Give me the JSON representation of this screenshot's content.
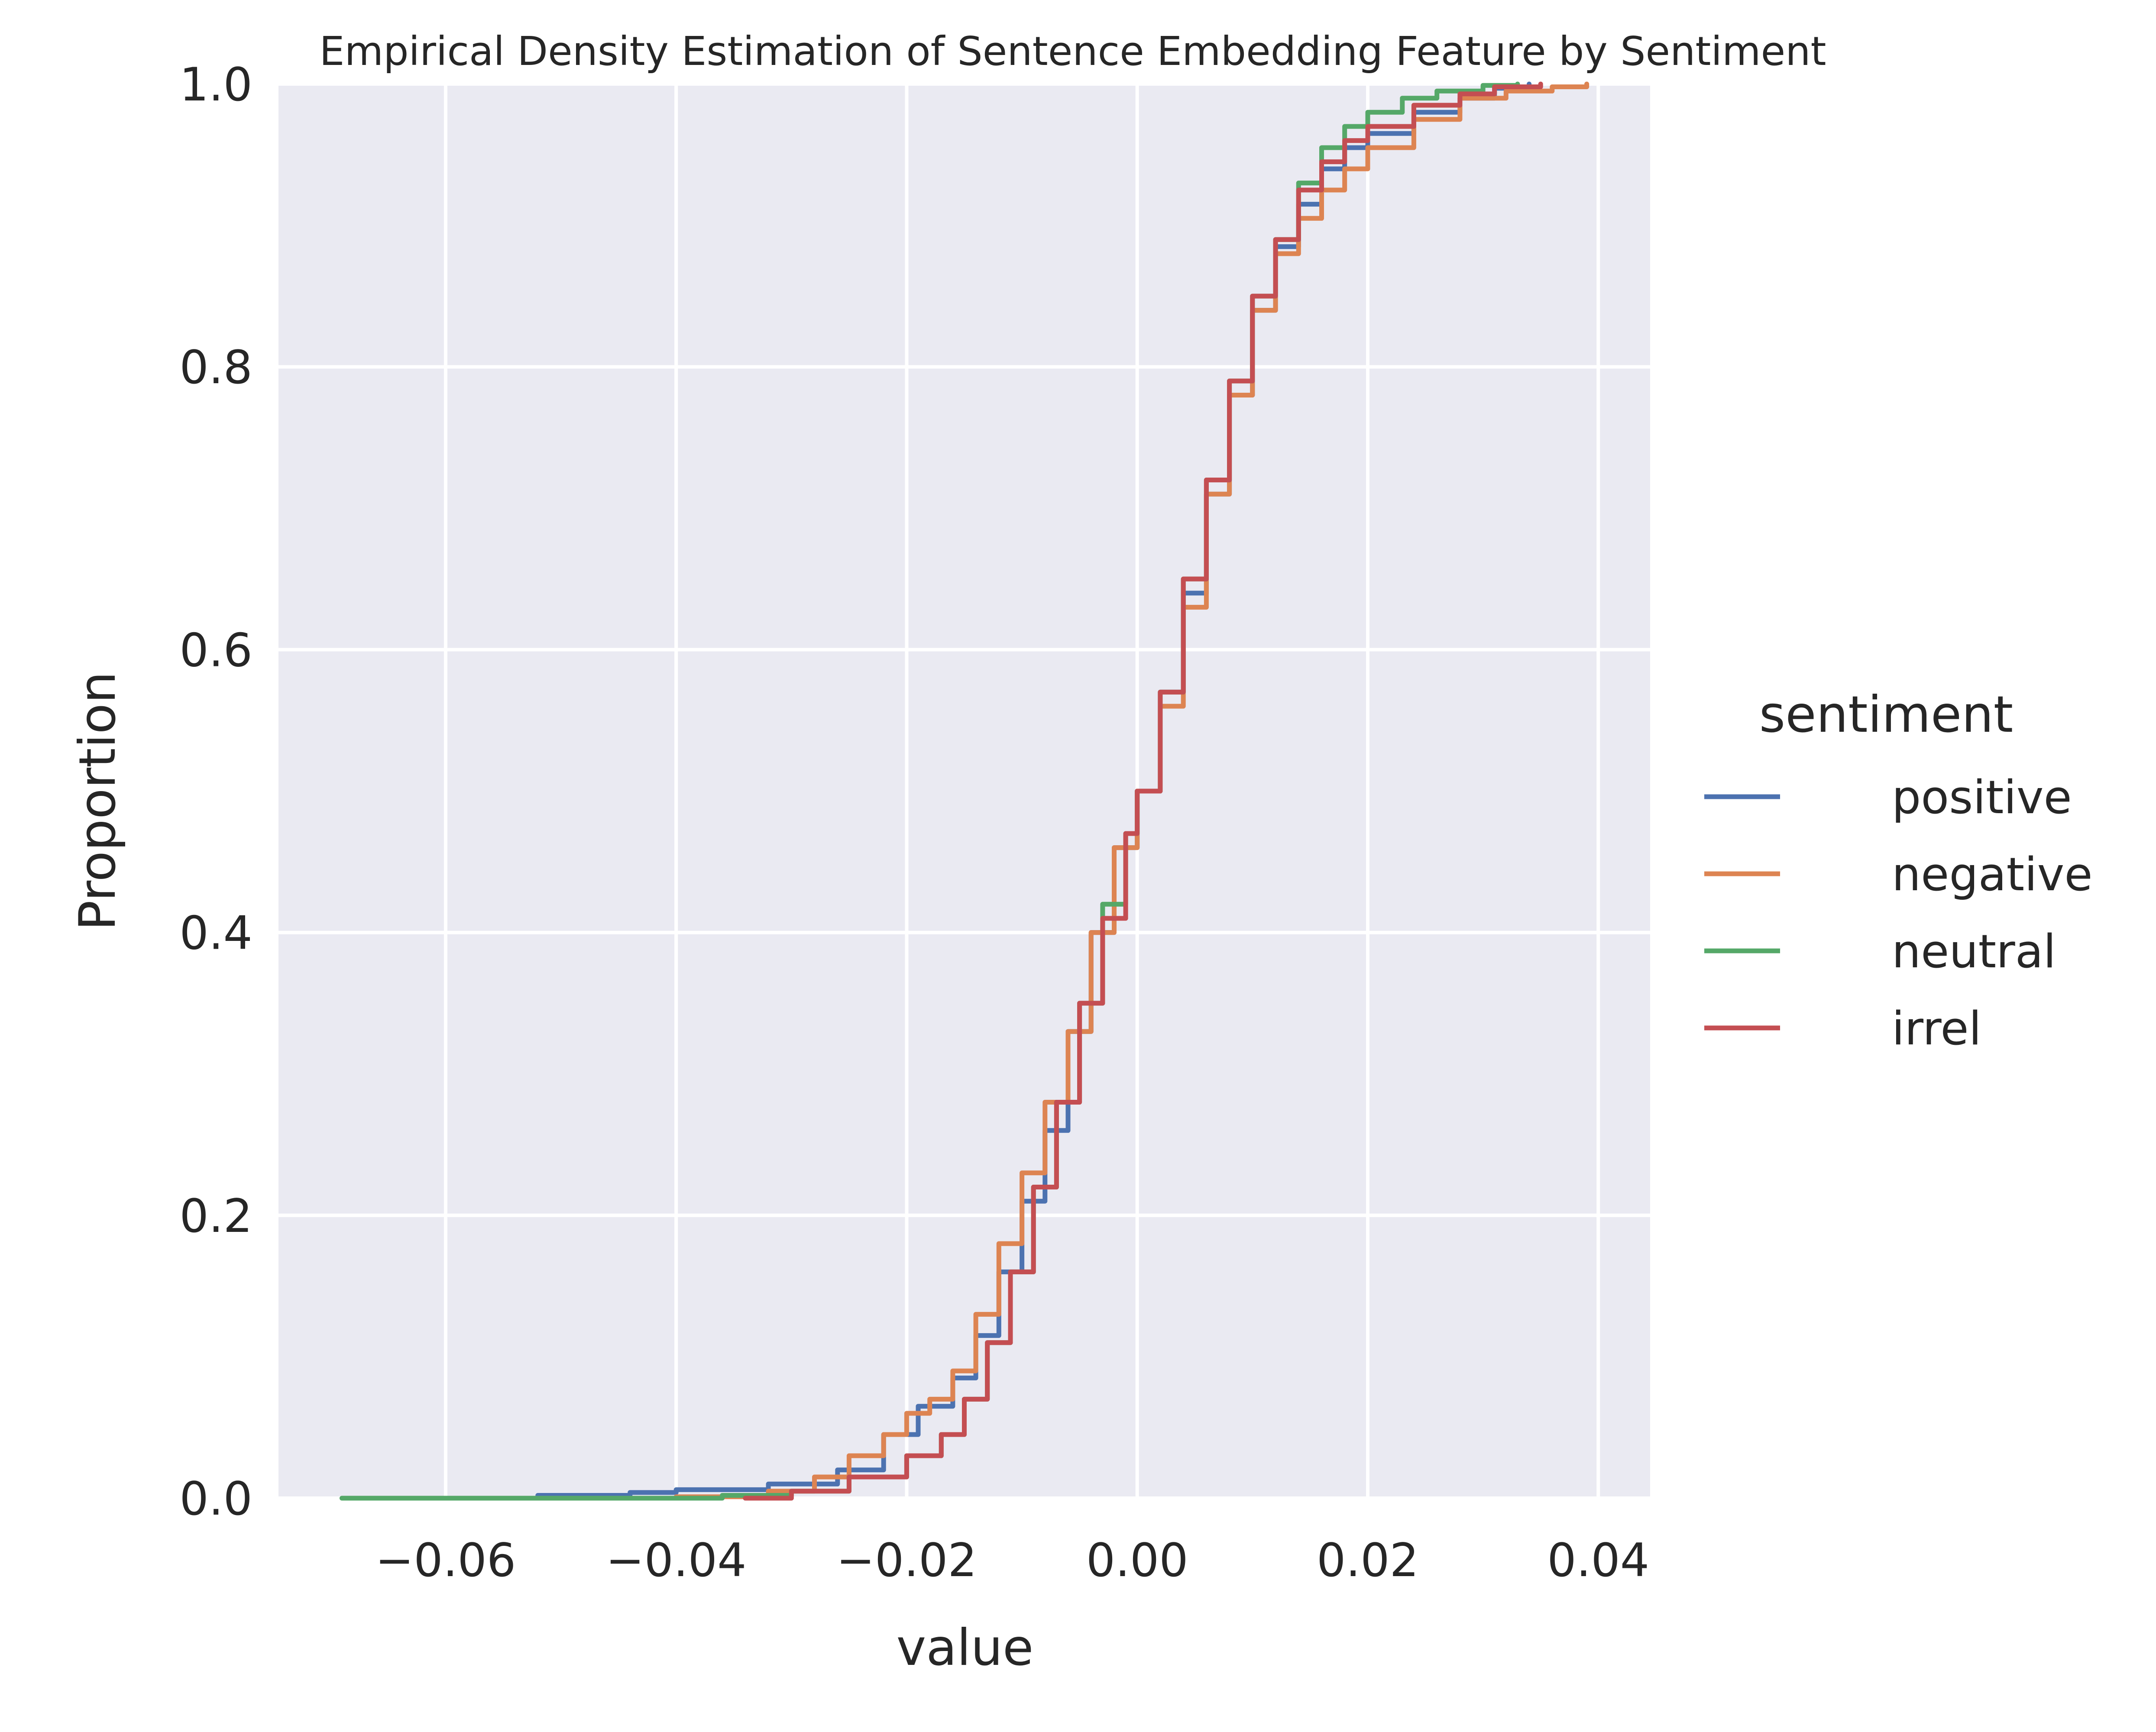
{
  "chart_data": {
    "type": "line",
    "subtype": "ecdf",
    "title": "Empirical Density Estimation of Sentence Embedding Feature by Sentiment",
    "xlabel": "value",
    "ylabel": "Proportion",
    "xlim": [
      -0.0745,
      0.0445
    ],
    "ylim": [
      0,
      1
    ],
    "xticks": [
      -0.06,
      -0.04,
      -0.02,
      0.0,
      0.02,
      0.04
    ],
    "xtick_labels": [
      "−0.06",
      "−0.04",
      "−0.02",
      "0.00",
      "0.02",
      "0.04"
    ],
    "yticks": [
      0,
      0.2,
      0.4,
      0.6,
      0.8,
      1.0
    ],
    "ytick_labels": [
      "0.0",
      "0.2",
      "0.4",
      "0.6",
      "0.8",
      "1.0"
    ],
    "grid": true,
    "background": "#eaeaf2",
    "legend": {
      "title": "sentiment",
      "placement": "right"
    },
    "series": [
      {
        "name": "positive",
        "color": "#4c72b0",
        "x": [
          -0.063,
          -0.052,
          -0.044,
          -0.04,
          -0.032,
          -0.026,
          -0.022,
          -0.019,
          -0.016,
          -0.014,
          -0.012,
          -0.01,
          -0.008,
          -0.006,
          -0.004,
          -0.002,
          0.0,
          0.002,
          0.004,
          0.006,
          0.008,
          0.01,
          0.012,
          0.014,
          0.016,
          0.018,
          0.02,
          0.024,
          0.028,
          0.031,
          0.034
        ],
        "y": [
          0.0,
          0.002,
          0.004,
          0.006,
          0.01,
          0.02,
          0.045,
          0.065,
          0.085,
          0.115,
          0.16,
          0.21,
          0.26,
          0.33,
          0.4,
          0.46,
          0.5,
          0.57,
          0.64,
          0.71,
          0.78,
          0.84,
          0.885,
          0.915,
          0.94,
          0.955,
          0.965,
          0.98,
          0.99,
          0.997,
          1.0
        ]
      },
      {
        "name": "negative",
        "color": "#dd8452",
        "x": [
          -0.045,
          -0.04,
          -0.032,
          -0.028,
          -0.025,
          -0.022,
          -0.02,
          -0.018,
          -0.016,
          -0.014,
          -0.012,
          -0.01,
          -0.008,
          -0.006,
          -0.004,
          -0.002,
          0.0,
          0.002,
          0.004,
          0.006,
          0.008,
          0.01,
          0.012,
          0.014,
          0.016,
          0.018,
          0.02,
          0.024,
          0.028,
          0.032,
          0.036,
          0.039
        ],
        "y": [
          0.0,
          0.001,
          0.005,
          0.015,
          0.03,
          0.045,
          0.06,
          0.07,
          0.09,
          0.13,
          0.18,
          0.23,
          0.28,
          0.33,
          0.4,
          0.46,
          0.5,
          0.56,
          0.63,
          0.71,
          0.78,
          0.84,
          0.88,
          0.905,
          0.925,
          0.94,
          0.955,
          0.975,
          0.99,
          0.995,
          0.998,
          1.0
        ]
      },
      {
        "name": "neutral",
        "color": "#55a868",
        "x": [
          -0.069,
          -0.05,
          -0.036,
          -0.03,
          -0.025,
          -0.02,
          -0.017,
          -0.015,
          -0.013,
          -0.011,
          -0.009,
          -0.007,
          -0.005,
          -0.003,
          -0.001,
          0.0,
          0.002,
          0.004,
          0.006,
          0.008,
          0.01,
          0.012,
          0.014,
          0.016,
          0.018,
          0.02,
          0.023,
          0.026,
          0.03,
          0.033
        ],
        "y": [
          0.0,
          0.0,
          0.002,
          0.005,
          0.015,
          0.03,
          0.045,
          0.07,
          0.11,
          0.16,
          0.22,
          0.28,
          0.35,
          0.42,
          0.47,
          0.5,
          0.57,
          0.65,
          0.72,
          0.79,
          0.85,
          0.89,
          0.93,
          0.955,
          0.97,
          0.98,
          0.99,
          0.995,
          0.999,
          1.0
        ]
      },
      {
        "name": "irrel",
        "color": "#c44e52",
        "x": [
          -0.034,
          -0.03,
          -0.025,
          -0.02,
          -0.017,
          -0.015,
          -0.013,
          -0.011,
          -0.009,
          -0.007,
          -0.005,
          -0.003,
          -0.001,
          0.0,
          0.002,
          0.004,
          0.006,
          0.008,
          0.01,
          0.012,
          0.014,
          0.016,
          0.018,
          0.02,
          0.024,
          0.028,
          0.031,
          0.035
        ],
        "y": [
          0.0,
          0.005,
          0.015,
          0.03,
          0.045,
          0.07,
          0.11,
          0.16,
          0.22,
          0.28,
          0.35,
          0.41,
          0.47,
          0.5,
          0.57,
          0.65,
          0.72,
          0.79,
          0.85,
          0.89,
          0.925,
          0.945,
          0.96,
          0.97,
          0.985,
          0.993,
          0.998,
          1.0
        ]
      }
    ]
  }
}
